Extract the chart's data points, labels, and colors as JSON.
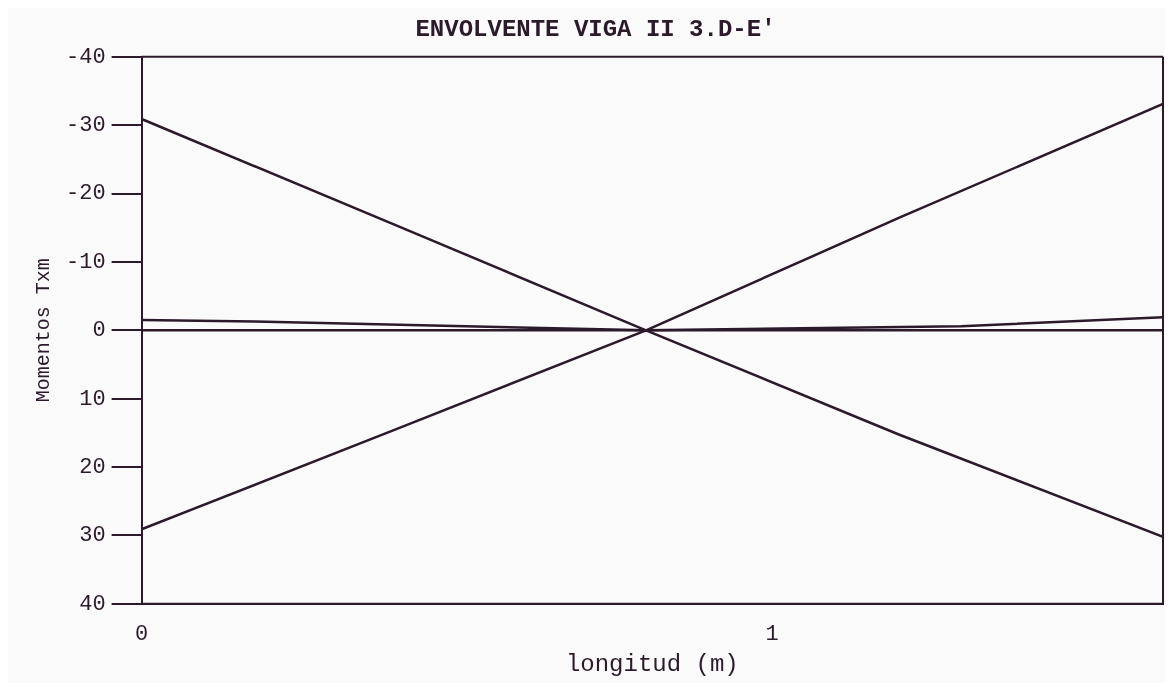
{
  "chart_data": {
    "type": "line",
    "title": "ENVOLVENTE VIGA II 3.D-E'",
    "xlabel": "longitud (m)",
    "ylabel": "Momentos Txm",
    "xlim": [
      0,
      1.62
    ],
    "xticks": [
      0,
      1
    ],
    "ylim": [
      40,
      -40
    ],
    "yticks": [
      -40,
      -30,
      -20,
      -10,
      0,
      10,
      20,
      30,
      40
    ],
    "grid": false,
    "legend": false,
    "marker": "none",
    "line_style": "solid",
    "ref_lines": [
      {
        "axis": "y",
        "value": 0,
        "color": "#2a1a2a"
      }
    ],
    "series": [
      {
        "color": "#2a1a2a",
        "x": [
          0,
          0.4,
          0.8,
          1.2,
          1.62
        ],
        "values": [
          -30.9,
          -15.5,
          0,
          15.2,
          30.2
        ]
      },
      {
        "color": "#2a1a2a",
        "x": [
          0,
          0.4,
          0.8,
          1.2,
          1.62
        ],
        "values": [
          29.1,
          14.6,
          0,
          -16.4,
          -33.1
        ]
      },
      {
        "color": "#2a1a2a",
        "x": [
          0,
          0.18,
          0.8,
          1.3,
          1.62
        ],
        "values": [
          -1.5,
          -1.3,
          0,
          -0.6,
          -1.9
        ]
      }
    ]
  }
}
